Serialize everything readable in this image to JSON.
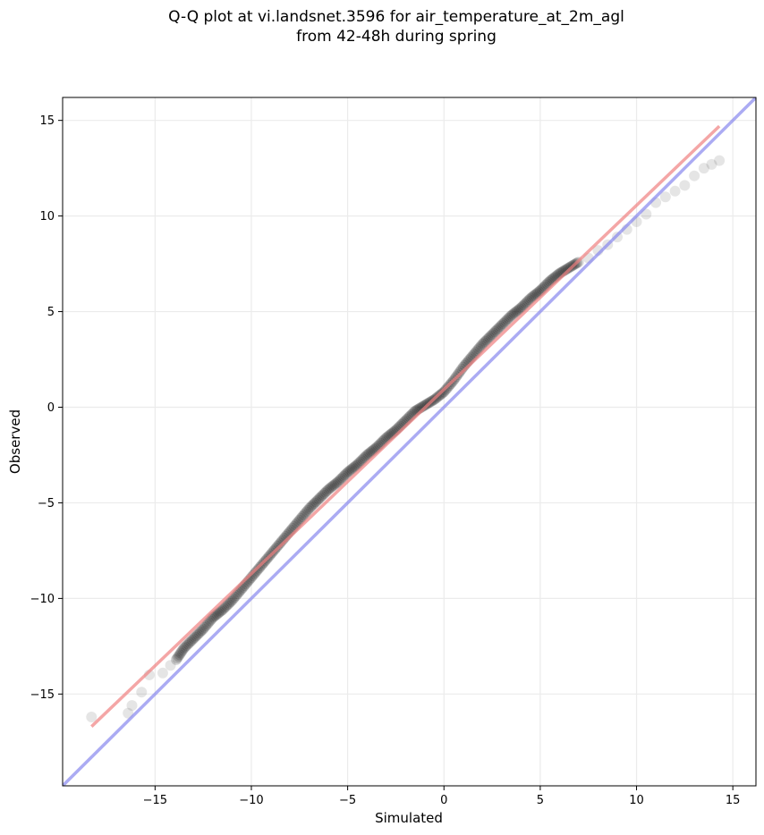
{
  "chart_data": {
    "type": "scatter",
    "title_line1": "Q-Q plot at vi.landsnet.3596 for air_temperature_at_2m_agl",
    "title_line2": "from 42-48h during spring",
    "xlabel": "Simulated",
    "ylabel": "Observed",
    "xlim": [
      -19.8,
      16.2
    ],
    "ylim": [
      -19.8,
      16.2
    ],
    "xticks": [
      -15,
      -10,
      -5,
      0,
      5,
      10,
      15
    ],
    "yticks": [
      -15,
      -10,
      -5,
      0,
      5,
      10,
      15
    ],
    "tick_labels": [
      "−15",
      "−10",
      "−5",
      "0",
      "5",
      "10",
      "15"
    ],
    "grid": true,
    "colors": {
      "points": "#000000",
      "fit_line": "#f08080",
      "identity_line": "#8888ee"
    },
    "identity_line": {
      "slope": 1,
      "intercept": 0
    },
    "fit_line": {
      "x": [
        -18.3,
        14.3
      ],
      "y": [
        -16.7,
        14.7
      ]
    },
    "quantiles": {
      "x": [
        -18.3,
        -16.4,
        -16.2,
        -15.7,
        -15.3,
        -14.6,
        -14.2,
        -13.9,
        -13.5,
        -13.0,
        -12.5,
        -12.0,
        -11.5,
        -11.0,
        -10.5,
        -10.0,
        -9.5,
        -9.0,
        -8.5,
        -8.0,
        -7.5,
        -7.0,
        -6.5,
        -6.0,
        -5.5,
        -5.0,
        -4.5,
        -4.0,
        -3.5,
        -3.0,
        -2.5,
        -2.0,
        -1.5,
        -1.0,
        -0.5,
        0.0,
        0.5,
        1.0,
        1.5,
        2.0,
        2.5,
        3.0,
        3.5,
        4.0,
        4.5,
        5.0,
        5.5,
        6.0,
        6.5,
        7.0,
        7.5,
        8.0,
        8.5,
        9.0,
        9.5,
        10.0,
        10.5,
        11.0,
        11.5,
        12.0,
        12.5,
        13.0,
        13.5,
        13.9,
        14.3
      ],
      "y": [
        -16.2,
        -16.0,
        -15.6,
        -14.9,
        -14.0,
        -13.9,
        -13.5,
        -13.2,
        -12.6,
        -12.1,
        -11.6,
        -11.0,
        -10.6,
        -10.1,
        -9.5,
        -8.9,
        -8.3,
        -7.7,
        -7.1,
        -6.5,
        -5.9,
        -5.3,
        -4.8,
        -4.3,
        -3.9,
        -3.4,
        -3.0,
        -2.5,
        -2.1,
        -1.6,
        -1.2,
        -0.7,
        -0.2,
        0.1,
        0.4,
        0.8,
        1.4,
        2.1,
        2.7,
        3.3,
        3.8,
        4.3,
        4.8,
        5.2,
        5.7,
        6.1,
        6.6,
        7.0,
        7.3,
        7.6,
        7.8,
        8.2,
        8.5,
        8.9,
        9.3,
        9.7,
        10.1,
        10.7,
        11.0,
        11.3,
        11.6,
        12.1,
        12.5,
        12.7,
        12.9
      ]
    }
  }
}
